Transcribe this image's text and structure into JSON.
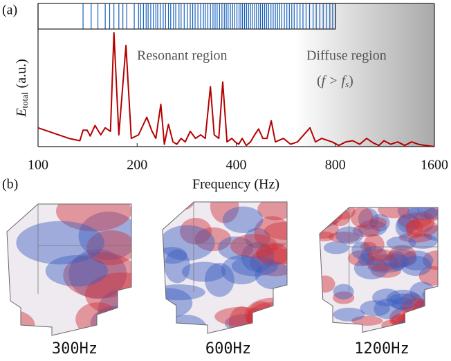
{
  "chart_data": [
    {
      "type": "rug",
      "color": "#1560bd",
      "xlim": [
        100,
        1600
      ],
      "log_x": true,
      "x": [
        137,
        145,
        152,
        160,
        165,
        170,
        176,
        181,
        186,
        196,
        202,
        205,
        209,
        213,
        216,
        220,
        224,
        228,
        231,
        235,
        240,
        244,
        249,
        253,
        258,
        262,
        268,
        272,
        278,
        284,
        290,
        295,
        300,
        306,
        312,
        318,
        322,
        328,
        334,
        340,
        345,
        350,
        356,
        362,
        368,
        373,
        378,
        384,
        390,
        396,
        402,
        408,
        413,
        418,
        424,
        430,
        436,
        442,
        448,
        455,
        461,
        468,
        474,
        481,
        488,
        495,
        502,
        510,
        518,
        526,
        534,
        542,
        550,
        560,
        570,
        580,
        590,
        600,
        612,
        625,
        638,
        652,
        668,
        685,
        700,
        718,
        735,
        752,
        770,
        785,
        800
      ]
    },
    {
      "type": "line",
      "panel": "(a)",
      "xlabel": "Frequency (Hz)",
      "ylabel": {
        "symbol": "E",
        "subscript": "total",
        "unit": "(a.u.)"
      },
      "xlim": [
        100,
        1600
      ],
      "log_x": true,
      "xticks": [
        100,
        200,
        400,
        800,
        1600
      ],
      "ylim": [
        0,
        1
      ],
      "shade_from": 600,
      "annotations": {
        "resonant": "Resonant region",
        "diffuse": "Diffuse region",
        "condition": {
          "open": "(",
          "var": "f",
          "op": ">",
          "sym": "f",
          "sub": "s",
          "close": ")"
        }
      },
      "x": [
        100,
        124,
        134,
        137,
        141,
        144,
        149,
        155,
        160,
        166,
        170,
        176,
        185,
        192,
        202,
        214,
        222,
        228,
        236,
        242,
        249,
        257,
        264,
        272,
        280,
        290,
        301,
        312,
        322,
        334,
        343,
        354,
        364,
        375,
        388,
        397,
        407,
        417,
        429,
        442,
        455,
        468,
        482,
        496,
        511,
        526,
        557,
        585,
        614,
        670,
        696,
        727,
        782,
        820,
        861,
        904,
        949,
        996,
        1045,
        1086,
        1124,
        1179,
        1238,
        1300,
        1364,
        1431,
        1502,
        1600
      ],
      "series": [
        {
          "color": "#b40000",
          "values": [
            0.16,
            0.07,
            0.05,
            0.14,
            0.14,
            0.09,
            0.18,
            0.1,
            0.16,
            0.13,
            0.97,
            0.1,
            0.86,
            0.07,
            0.1,
            0.25,
            0.13,
            0.07,
            0.36,
            0.02,
            0.19,
            0.04,
            0.02,
            0.07,
            0.04,
            0.13,
            0.07,
            0.1,
            0.07,
            0.51,
            0.1,
            0.07,
            0.55,
            0.04,
            0.07,
            0.04,
            0.02,
            0.07,
            0.01,
            0.04,
            0.1,
            0.15,
            0.07,
            0.07,
            0.22,
            0.04,
            0.07,
            0.02,
            0.04,
            0.16,
            0.04,
            0.07,
            0.04,
            0.01,
            0.04,
            0.05,
            0.02,
            0.07,
            0.03,
            0.01,
            0.05,
            0.02,
            0.04,
            0.01,
            0.04,
            0.02,
            0.01,
            0.0
          ]
        }
      ]
    }
  ],
  "panel_b": {
    "label": "(b)",
    "images": [
      {
        "caption": "300Hz"
      },
      {
        "caption": "600Hz"
      },
      {
        "caption": "1200Hz"
      }
    ]
  }
}
